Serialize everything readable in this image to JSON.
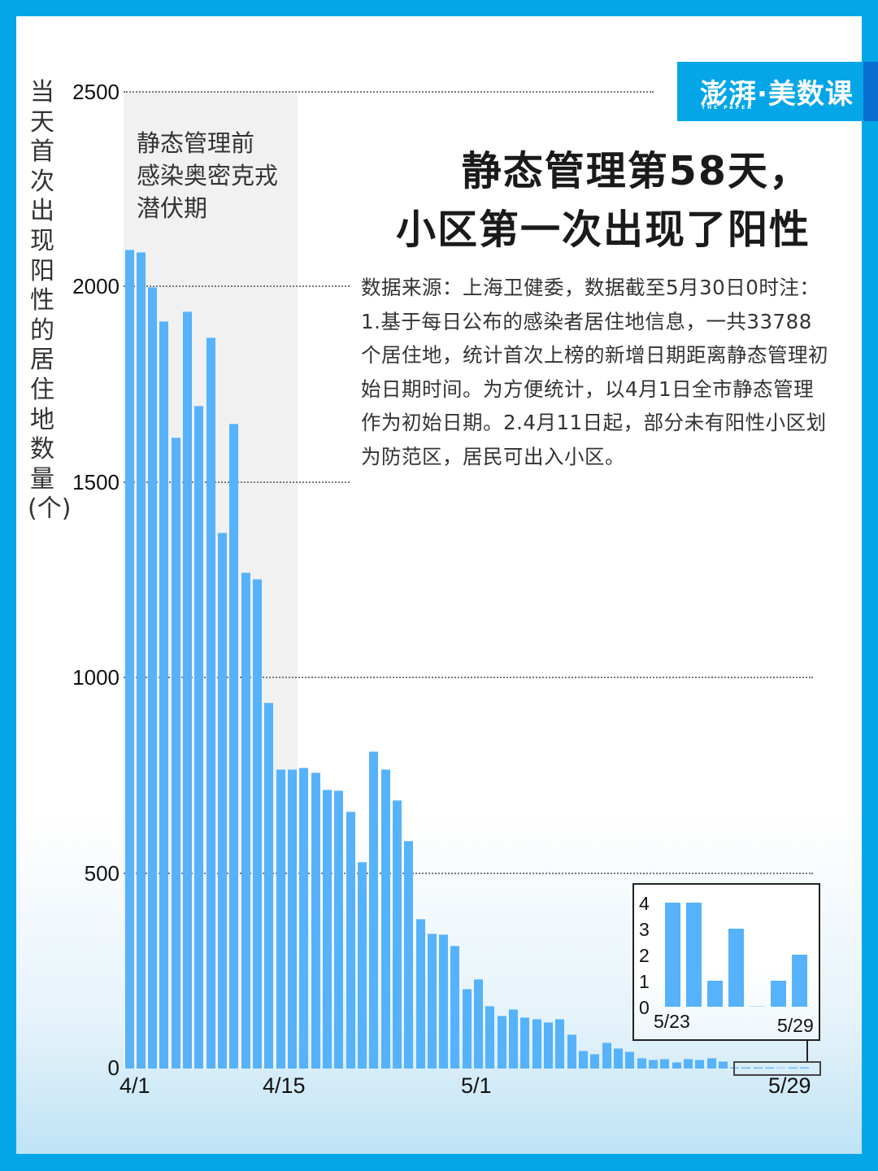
{
  "brand": {
    "logo_main": "澎湃·美数课",
    "logo_sub": "THE PAPER",
    "frame_color": "#05A6E8",
    "bar_color": "#56B2FB"
  },
  "title": {
    "line1": "静态管理第58天，",
    "line2": "小区第一次出现了阳性"
  },
  "shaded_region": {
    "label": "静态管理前\n感染奥密克戎\n潜伏期",
    "start": "4/1",
    "end": "4/15"
  },
  "note": {
    "text": "数据来源：上海卫健委，数据截至5月30日0时注：1.基于每日公布的感染者居住地信息，一共33788个居住地，统计首次上榜的新增日期距离静态管理初始日期时间。为方便统计，以4月1日全市静态管理作为初始日期。2.4月11日起，部分未有阳性小区划为防范区，居民可出入小区。"
  },
  "axis": {
    "ylabel": "当天首次出现阳性的居住地数量(个)",
    "yticks": [
      "2500",
      "2000",
      "1500",
      "1000",
      "500",
      "0"
    ],
    "xticks": [
      "4/1",
      "4/15",
      "5/1",
      "5/29"
    ]
  },
  "inset": {
    "yticks": [
      "4",
      "3",
      "2",
      "1",
      "0"
    ],
    "xticks": [
      "5/23",
      "5/29"
    ]
  },
  "chart_data": [
    {
      "type": "bar",
      "title": "静态管理第58天，小区第一次出现了阳性",
      "xlabel": "",
      "ylabel": "当天首次出现阳性的居住地数量(个)",
      "ylim": [
        0,
        2500
      ],
      "yticks": [
        0,
        500,
        1000,
        1500,
        2000,
        2500
      ],
      "grid": "horizontal dotted",
      "annotations": [
        "静态管理前感染奥密克戎潜伏期 (shaded 4/1–4/15)"
      ],
      "categories": [
        "4/1",
        "4/2",
        "4/3",
        "4/4",
        "4/5",
        "4/6",
        "4/7",
        "4/8",
        "4/9",
        "4/10",
        "4/11",
        "4/12",
        "4/13",
        "4/14",
        "4/15",
        "4/16",
        "4/17",
        "4/18",
        "4/19",
        "4/20",
        "4/21",
        "4/22",
        "4/23",
        "4/24",
        "4/25",
        "4/26",
        "4/27",
        "4/28",
        "4/29",
        "4/30",
        "5/1",
        "5/2",
        "5/3",
        "5/4",
        "5/5",
        "5/6",
        "5/7",
        "5/8",
        "5/9",
        "5/10",
        "5/11",
        "5/12",
        "5/13",
        "5/14",
        "5/15",
        "5/16",
        "5/17",
        "5/18",
        "5/19",
        "5/20",
        "5/21",
        "5/22",
        "5/23",
        "5/24",
        "5/25",
        "5/26",
        "5/27",
        "5/28",
        "5/29"
      ],
      "values": [
        2096,
        2089,
        2000,
        1914,
        1615,
        1938,
        1696,
        1871,
        1372,
        1650,
        1270,
        1254,
        937,
        765,
        765,
        771,
        758,
        715,
        712,
        658,
        529,
        812,
        766,
        686,
        583,
        383,
        346,
        344,
        315,
        205,
        228,
        161,
        135,
        151,
        131,
        126,
        118,
        128,
        87,
        46,
        37,
        66,
        52,
        44,
        28,
        23,
        26,
        17,
        25,
        23,
        28,
        19,
        4,
        4,
        1,
        3,
        0,
        1,
        2
      ]
    },
    {
      "type": "bar",
      "title": "inset 5/23–5/29",
      "ylim": [
        0,
        4
      ],
      "categories": [
        "5/23",
        "5/24",
        "5/25",
        "5/26",
        "5/27",
        "5/28",
        "5/29"
      ],
      "values": [
        4,
        4,
        1,
        3,
        0,
        1,
        2
      ]
    }
  ]
}
